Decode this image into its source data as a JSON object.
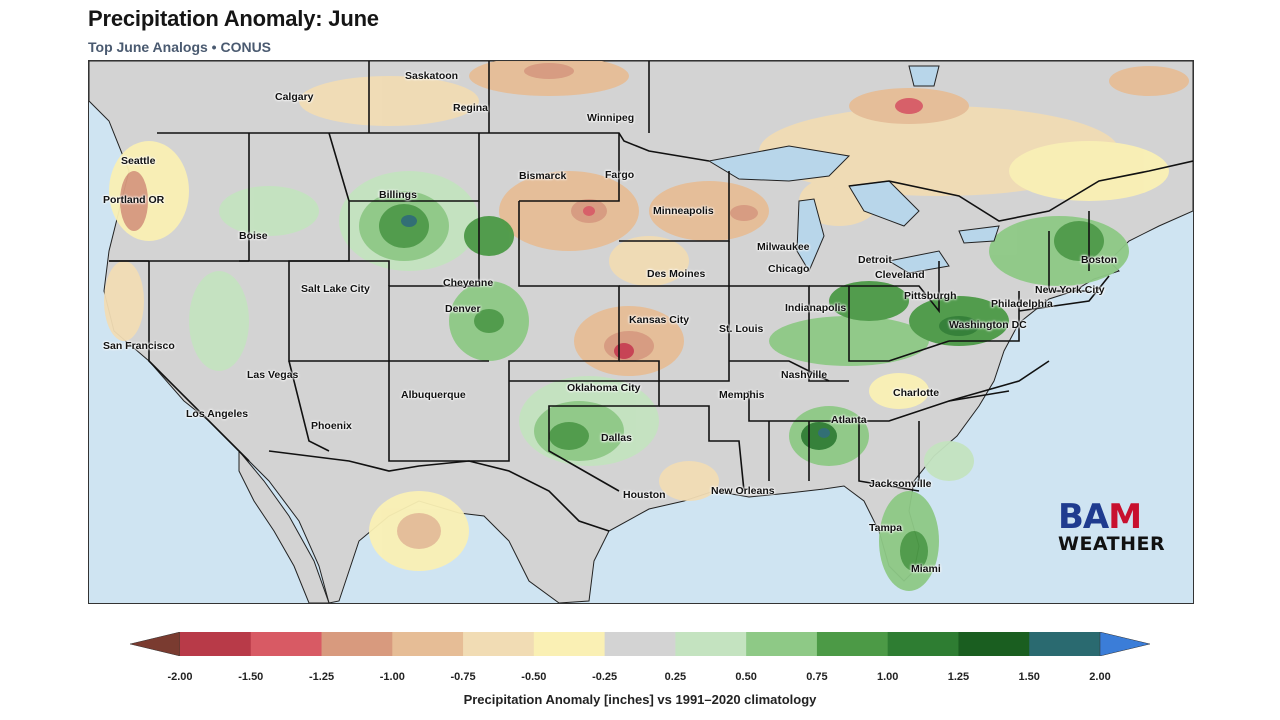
{
  "header": {
    "title": "Precipitation Anomaly: June",
    "subtitle": "Top June Analogs  •  CONUS"
  },
  "map": {
    "region": "CONUS",
    "cities": [
      {
        "name": "Saskatoon"
      },
      {
        "name": "Calgary"
      },
      {
        "name": "Regina"
      },
      {
        "name": "Winnipeg"
      },
      {
        "name": "Seattle"
      },
      {
        "name": "Portland OR"
      },
      {
        "name": "Billings"
      },
      {
        "name": "Bismarck"
      },
      {
        "name": "Fargo"
      },
      {
        "name": "Boise"
      },
      {
        "name": "Minneapolis"
      },
      {
        "name": "Milwaukee"
      },
      {
        "name": "Detroit"
      },
      {
        "name": "Chicago"
      },
      {
        "name": "Cleveland"
      },
      {
        "name": "Boston"
      },
      {
        "name": "Salt Lake City"
      },
      {
        "name": "Cheyenne"
      },
      {
        "name": "Des Moines"
      },
      {
        "name": "Pittsburgh"
      },
      {
        "name": "New York City"
      },
      {
        "name": "Philadelphia"
      },
      {
        "name": "Denver"
      },
      {
        "name": "Indianapolis"
      },
      {
        "name": "Washington DC"
      },
      {
        "name": "Kansas City"
      },
      {
        "name": "St. Louis"
      },
      {
        "name": "San Francisco"
      },
      {
        "name": "Nashville"
      },
      {
        "name": "Las Vegas"
      },
      {
        "name": "Oklahoma City"
      },
      {
        "name": "Charlotte"
      },
      {
        "name": "Albuquerque"
      },
      {
        "name": "Memphis"
      },
      {
        "name": "Los Angeles"
      },
      {
        "name": "Atlanta"
      },
      {
        "name": "Phoenix"
      },
      {
        "name": "Dallas"
      },
      {
        "name": "Jacksonville"
      },
      {
        "name": "Houston"
      },
      {
        "name": "New Orleans"
      },
      {
        "name": "Tampa"
      },
      {
        "name": "Miami"
      }
    ]
  },
  "logo": {
    "line1": "BAM",
    "line2": "WEATHER",
    "colors": {
      "blue": "#1f3b8f",
      "red": "#c8102e"
    }
  },
  "colorbar": {
    "ticks": [
      "-2.00",
      "-1.50",
      "-1.25",
      "-1.00",
      "-0.75",
      "-0.50",
      "-0.25",
      "0.25",
      "0.50",
      "0.75",
      "1.00",
      "1.25",
      "1.50",
      "2.00"
    ],
    "colors": [
      "#b83a48",
      "#d85a64",
      "#d89a7e",
      "#e6bd96",
      "#f1dcb4",
      "#faf0b4",
      "#d3d3d3",
      "#c4e3c0",
      "#8ec986",
      "#4c9a46",
      "#2e7d32",
      "#1a5e20",
      "#2a6a70"
    ],
    "under_color": "#7a3b30",
    "over_color": "#3b7dd8",
    "label": "Precipitation Anomaly [inches] vs 1991–2020 climatology"
  }
}
